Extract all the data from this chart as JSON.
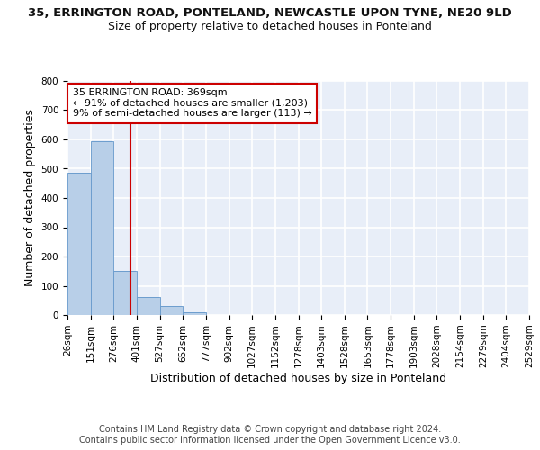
{
  "title1": "35, ERRINGTON ROAD, PONTELAND, NEWCASTLE UPON TYNE, NE20 9LD",
  "title2": "Size of property relative to detached houses in Ponteland",
  "xlabel": "Distribution of detached houses by size in Ponteland",
  "ylabel": "Number of detached properties",
  "bin_edges": [
    26,
    151,
    276,
    401,
    527,
    652,
    777,
    902,
    1027,
    1152,
    1278,
    1403,
    1528,
    1653,
    1778,
    1903,
    2028,
    2154,
    2279,
    2404,
    2529
  ],
  "bar_heights": [
    487,
    593,
    150,
    63,
    30,
    10,
    0,
    0,
    0,
    0,
    0,
    0,
    0,
    0,
    0,
    0,
    0,
    0,
    0,
    0
  ],
  "bar_color": "#b8cfe8",
  "bar_edge_color": "#6699cc",
  "property_size": 369,
  "vline_color": "#cc0000",
  "annotation_text": "35 ERRINGTON ROAD: 369sqm\n← 91% of detached houses are smaller (1,203)\n9% of semi-detached houses are larger (113) →",
  "annotation_box_edge_color": "#cc0000",
  "annotation_box_face_color": "#ffffff",
  "footer_text": "Contains HM Land Registry data © Crown copyright and database right 2024.\nContains public sector information licensed under the Open Government Licence v3.0.",
  "ylim": [
    0,
    800
  ],
  "yticks": [
    0,
    100,
    200,
    300,
    400,
    500,
    600,
    700,
    800
  ],
  "background_color": "#e8eef8",
  "grid_color": "#ffffff",
  "title1_fontsize": 9.5,
  "title2_fontsize": 9,
  "tick_fontsize": 7.5,
  "label_fontsize": 9,
  "footer_fontsize": 7
}
